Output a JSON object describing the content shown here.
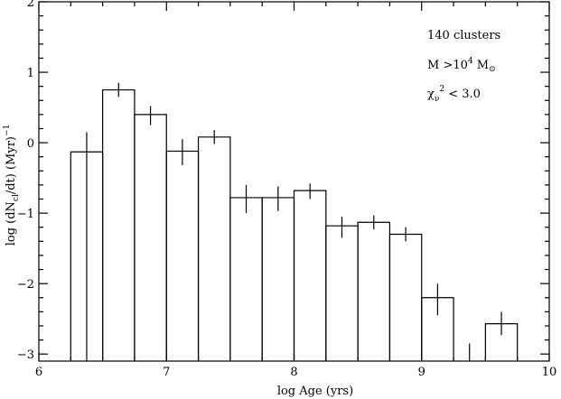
{
  "chart_data": {
    "type": "histogram",
    "xlabel": "log Age (yrs)",
    "ylabel": {
      "prefix": "log (dN",
      "subscript": "cl",
      "middle": "/dt)    (Myr)",
      "superscript": "−1"
    },
    "xlim": [
      6,
      10
    ],
    "ylim": [
      -3.1,
      2
    ],
    "x_ticks": [
      6,
      7,
      8,
      9,
      10
    ],
    "x_tick_labels": [
      "6",
      "7",
      "8",
      "9",
      "10"
    ],
    "y_ticks": [
      -3,
      -2,
      -1,
      0,
      1,
      2
    ],
    "y_tick_labels": [
      "−3",
      "−2",
      "−1",
      "0",
      "1",
      "2"
    ],
    "bins": [
      {
        "x0": 6.25,
        "x1": 6.5,
        "y": -0.13,
        "center": 6.375,
        "err_lo": -3.1,
        "err_hi": 0.15
      },
      {
        "x0": 6.5,
        "x1": 6.75,
        "y": 0.75,
        "center": 6.625,
        "err_lo": 0.65,
        "err_hi": 0.85
      },
      {
        "x0": 6.75,
        "x1": 7.0,
        "y": 0.4,
        "center": 6.875,
        "err_lo": 0.25,
        "err_hi": 0.52
      },
      {
        "x0": 7.0,
        "x1": 7.25,
        "y": -0.12,
        "center": 7.125,
        "err_lo": -0.32,
        "err_hi": 0.05
      },
      {
        "x0": 7.25,
        "x1": 7.5,
        "y": 0.08,
        "center": 7.375,
        "err_lo": -0.02,
        "err_hi": 0.18
      },
      {
        "x0": 7.5,
        "x1": 7.75,
        "y": -0.78,
        "center": 7.625,
        "err_lo": -1.0,
        "err_hi": -0.6
      },
      {
        "x0": 7.75,
        "x1": 8.0,
        "y": -0.78,
        "center": 7.875,
        "err_lo": -0.97,
        "err_hi": -0.62
      },
      {
        "x0": 8.0,
        "x1": 8.25,
        "y": -0.68,
        "center": 8.125,
        "err_lo": -0.8,
        "err_hi": -0.58
      },
      {
        "x0": 8.25,
        "x1": 8.5,
        "y": -1.18,
        "center": 8.375,
        "err_lo": -1.35,
        "err_hi": -1.05
      },
      {
        "x0": 8.5,
        "x1": 8.75,
        "y": -1.13,
        "center": 8.625,
        "err_lo": -1.23,
        "err_hi": -1.03
      },
      {
        "x0": 8.75,
        "x1": 9.0,
        "y": -1.3,
        "center": 8.875,
        "err_lo": -1.4,
        "err_hi": -1.2
      },
      {
        "x0": 9.0,
        "x1": 9.25,
        "y": -2.2,
        "center": 9.125,
        "err_lo": -2.45,
        "err_hi": -2.0
      },
      {
        "x0": 9.25,
        "x1": 9.5,
        "y": null,
        "center": 9.375,
        "err_lo": -3.1,
        "err_hi": -2.85
      },
      {
        "x0": 9.5,
        "x1": 9.75,
        "y": -2.57,
        "center": 9.625,
        "err_lo": -2.73,
        "err_hi": -2.4
      }
    ],
    "annotations": {
      "clusters": "140 clusters",
      "mass_prefix": "M >10",
      "mass_exp": "4",
      "mass_suffix": " M",
      "mass_sun_symbol": "⊙",
      "chi_symbol": "χ",
      "chi_sub": "ν",
      "chi_sup": "2",
      "chi_rest": " < 3.0"
    },
    "grid": false
  }
}
